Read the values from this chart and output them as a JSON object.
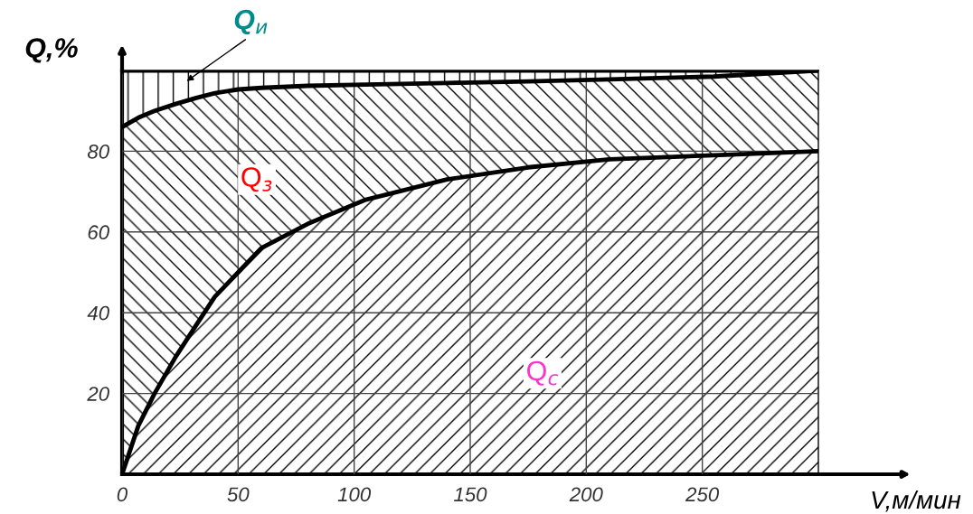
{
  "chart_data": {
    "type": "area",
    "stacked": true,
    "xlabel": "V,м/мин",
    "ylabel": "Q,%",
    "x": [
      0,
      7,
      14,
      23,
      32,
      40,
      50,
      60,
      80,
      105,
      140,
      175,
      210,
      255,
      300
    ],
    "series": [
      {
        "name": "Q$_{с}$",
        "color": "#000000",
        "values": [
          0,
          12,
          20,
          29,
          37,
          44,
          50,
          56,
          62,
          68,
          73,
          76,
          78,
          79,
          80
        ]
      },
      {
        "name": "Q$_{з}$",
        "color": "#000000",
        "values": [
          86,
          76.3,
          70,
          62.7,
          56.2,
          50.4,
          45.3,
          39.7,
          34.2,
          28.5,
          23.9,
          21.3,
          19.8,
          19.5,
          20
        ]
      },
      {
        "name": "Q$_{и}$",
        "color": "#000000",
        "values": [
          14,
          11.7,
          10,
          8.3,
          6.8,
          5.6,
          4.7,
          4.3,
          3.8,
          3.5,
          3.1,
          2.7,
          2.2,
          1.5,
          0
        ]
      }
    ],
    "xlim": [
      0,
      300
    ],
    "xticks": [
      0,
      50,
      100,
      150,
      200,
      250
    ],
    "ylim": [
      0,
      100
    ],
    "yticks": [
      20,
      40,
      60,
      80
    ],
    "grid": true,
    "legend": false
  }
}
